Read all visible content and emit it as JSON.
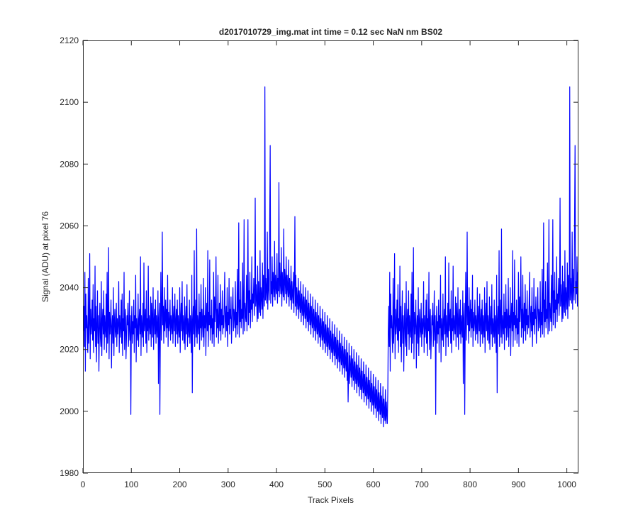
{
  "chart_data": {
    "type": "line",
    "title": "d2017010729_img.mat int time = 0.12 sec  NaN nm BS02",
    "xlabel": "Track Pixels",
    "ylabel": "Signal (ADU) at pixel 76",
    "xlim": [
      0,
      1024
    ],
    "ylim": [
      1980,
      2120
    ],
    "xticks": [
      0,
      100,
      200,
      300,
      400,
      500,
      600,
      700,
      800,
      900,
      1000
    ],
    "yticks": [
      1980,
      2000,
      2020,
      2040,
      2060,
      2080,
      2100,
      2120
    ],
    "grid": false,
    "series": [
      {
        "color": "#0000ff",
        "x_start": 1,
        "x_step": 1,
        "count": 1024,
        "values": [
          2026,
          2034,
          2021,
          2045,
          2013,
          2038,
          2027,
          2031,
          2024,
          2019,
          2043,
          2022,
          2029,
          2051,
          2017,
          2033,
          2025,
          2028,
          2036,
          2023,
          2041,
          2019,
          2030,
          2026,
          2047,
          2021,
          2034,
          2016,
          2028,
          2039,
          2022,
          2031,
          2013,
          2027,
          2035,
          2024,
          2021,
          2042,
          2018,
          2029,
          2033,
          2025,
          2039,
          2020,
          2031,
          2027,
          2024,
          2038,
          2019,
          2045,
          2022,
          2028,
          2053,
          2017,
          2032,
          2025,
          2029,
          2036,
          2014,
          2027,
          2031,
          2022,
          2040,
          2018,
          2029,
          2033,
          2024,
          2026,
          2035,
          2021,
          2030,
          2025,
          2028,
          2042,
          2019,
          2031,
          2024,
          2027,
          2036,
          2022,
          2038,
          2018,
          2030,
          2026,
          2045,
          2020,
          2029,
          2033,
          2017,
          2024,
          2031,
          2028,
          2035,
          2021,
          2026,
          2039,
          2023,
          2031,
          1999,
          2027,
          2034,
          2022,
          2029,
          2025,
          2036,
          2019,
          2031,
          2027,
          2044,
          2016,
          2030,
          2026,
          2023,
          2038,
          2021,
          2029,
          2033,
          2025,
          2050,
          2018,
          2031,
          2027,
          2024,
          2035,
          2021,
          2048,
          2026,
          2029,
          2033,
          2022,
          2039,
          2019,
          2030,
          2026,
          2047,
          2023,
          2031,
          2028,
          2025,
          2037,
          2021,
          2035,
          2030,
          2024,
          2040,
          2020,
          2029,
          2033,
          2025,
          2036,
          2022,
          2031,
          2027,
          2024,
          2039,
          2009,
          2030,
          2035,
          1999,
          2026,
          2045,
          2023,
          2031,
          2058,
          2028,
          2034,
          2022,
          2040,
          2026,
          2030,
          2036,
          2024,
          2033,
          2027,
          2044,
          2021,
          2032,
          2026,
          2029,
          2036,
          2023,
          2031,
          2028,
          2025,
          2040,
          2022,
          2030,
          2034,
          2026,
          2038,
          2021,
          2029,
          2033,
          2025,
          2036,
          2022,
          2031,
          2027,
          2024,
          2040,
          2019,
          2030,
          2035,
          2026,
          2042,
          2023,
          2031,
          2028,
          2022,
          2037,
          2020,
          2029,
          2034,
          2025,
          2041,
          2021,
          2030,
          2027,
          2024,
          2036,
          2022,
          2031,
          2028,
          2019,
          2044,
          2006,
          2029,
          2034,
          2025,
          2052,
          2021,
          2030,
          2036,
          2024,
          2059,
          2022,
          2031,
          2028,
          2025,
          2038,
          2020,
          2032,
          2027,
          2041,
          2023,
          2033,
          2029,
          2024,
          2043,
          2021,
          2031,
          2027,
          2040,
          2018,
          2030,
          2035,
          2026,
          2052,
          2021,
          2032,
          2028,
          2049,
          2023,
          2031,
          2027,
          2036,
          2022,
          2030,
          2025,
          2045,
          2021,
          2037,
          2029,
          2034,
          2050,
          2024,
          2033,
          2027,
          2044,
          2022,
          2029,
          2035,
          2026,
          2041,
          2023,
          2033,
          2028,
          2039,
          2025,
          2031,
          2027,
          2035,
          2045,
          2024,
          2030,
          2034,
          2026,
          2040,
          2021,
          2032,
          2028,
          2043,
          2025,
          2033,
          2030,
          2037,
          2022,
          2029,
          2034,
          2040,
          2026,
          2033,
          2031,
          2027,
          2042,
          2024,
          2032,
          2028,
          2046,
          2025,
          2034,
          2061,
          2024,
          2036,
          2029,
          2042,
          2027,
          2033,
          2030,
          2048,
          2025,
          2034,
          2062,
          2026,
          2035,
          2031,
          2029,
          2044,
          2026,
          2037,
          2062,
          2028,
          2039,
          2032,
          2045,
          2027,
          2036,
          2033,
          2050,
          2029,
          2038,
          2035,
          2043,
          2031,
          2037,
          2069,
          2034,
          2041,
          2036,
          2029,
          2047,
          2030,
          2042,
          2035,
          2032,
          2052,
          2031,
          2040,
          2037,
          2033,
          2048,
          2030,
          2044,
          2038,
          2034,
          2105,
          2036,
          2043,
          2039,
          2035,
          2058,
          2033,
          2046,
          2040,
          2036,
          2062,
          2086,
          2035,
          2042,
          2038,
          2050,
          2034,
          2045,
          2041,
          2037,
          2055,
          2036,
          2044,
          2040,
          2038,
          2051,
          2035,
          2043,
          2039,
          2074,
          2037,
          2048,
          2041,
          2038,
          2053,
          2034,
          2045,
          2040,
          2037,
          2059,
          2036,
          2046,
          2042,
          2038,
          2050,
          2035,
          2044,
          2040,
          2037,
          2049,
          2034,
          2043,
          2039,
          2036,
          2047,
          2033,
          2042,
          2038,
          2035,
          2045,
          2032,
          2041,
          2063,
          2034,
          2044,
          2031,
          2040,
          2036,
          2033,
          2043,
          2030,
          2039,
          2035,
          2032,
          2042,
          2029,
          2038,
          2034,
          2031,
          2041,
          2028,
          2037,
          2033,
          2030,
          2040,
          2027,
          2036,
          2032,
          2029,
          2039,
          2026,
          2035,
          2031,
          2028,
          2038,
          2025,
          2034,
          2030,
          2027,
          2037,
          2024,
          2033,
          2029,
          2026,
          2036,
          2023,
          2032,
          2028,
          2025,
          2035,
          2022,
          2031,
          2027,
          2024,
          2034,
          2021,
          2030,
          2026,
          2023,
          2033,
          2020,
          2029,
          2025,
          2022,
          2032,
          2019,
          2028,
          2024,
          2021,
          2031,
          2018,
          2027,
          2023,
          2020,
          2030,
          2017,
          2026,
          2022,
          2019,
          2029,
          2016,
          2025,
          2021,
          2018,
          2028,
          2015,
          2024,
          2020,
          2017,
          2027,
          2014,
          2023,
          2019,
          2016,
          2026,
          2013,
          2022,
          2018,
          2015,
          2025,
          2012,
          2021,
          2017,
          2014,
          2024,
          2011,
          2020,
          2016,
          2013,
          2023,
          2010,
          2019,
          2003,
          2012,
          2022,
          2009,
          2018,
          2014,
          2011,
          2021,
          2008,
          2017,
          2013,
          2010,
          2020,
          2007,
          2016,
          2012,
          2009,
          2019,
          2006,
          2015,
          2011,
          2008,
          2018,
          2005,
          2014,
          2010,
          2007,
          2017,
          2004,
          2013,
          2009,
          2006,
          2016,
          2003,
          2012,
          2008,
          2005,
          2015,
          2002,
          2011,
          2007,
          2004,
          2014,
          2001,
          2010,
          2006,
          2003,
          2013,
          2000,
          2009,
          2005,
          2002,
          2012,
          1999,
          2008,
          2004,
          2001,
          2011,
          1998,
          2007,
          2003,
          2000,
          2010,
          1997,
          2006,
          2002,
          1999,
          2009,
          1996,
          2005,
          2001,
          1998,
          2008,
          1995,
          2004,
          2000,
          1997,
          2007,
          1996,
          2003,
          1999,
          1996,
          2006
        ],
        "mean_level": 2027
      }
    ]
  }
}
